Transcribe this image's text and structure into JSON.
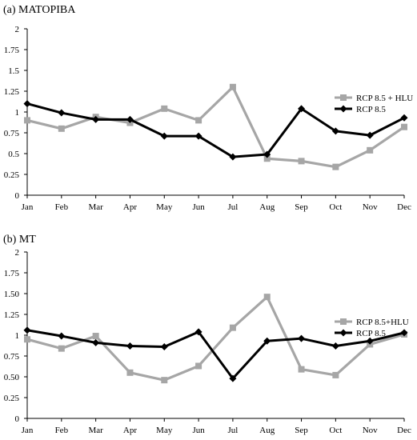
{
  "chart_data": [
    {
      "type": "line",
      "title": "(a) MATOPIBA",
      "categories": [
        "Jan",
        "Feb",
        "Mar",
        "Apr",
        "May",
        "Jun",
        "Jul",
        "Aug",
        "Sep",
        "Oct",
        "Nov",
        "Dec"
      ],
      "y_ticks": [
        "0",
        "0.25",
        "0.5",
        "0.75",
        "1",
        "1.25",
        "1.5",
        "1.75",
        "2"
      ],
      "ylim": [
        0,
        2
      ],
      "grid": false,
      "legend_position": "right",
      "series": [
        {
          "name": "RCP 8.5 + HLU",
          "color": "#a6a6a6",
          "marker": "square",
          "values": [
            0.9,
            0.8,
            0.94,
            0.87,
            1.04,
            0.9,
            1.3,
            0.44,
            0.41,
            0.34,
            0.54,
            0.82
          ]
        },
        {
          "name": "RCP 8.5",
          "color": "#000000",
          "marker": "diamond",
          "values": [
            1.1,
            0.99,
            0.91,
            0.91,
            0.71,
            0.71,
            0.46,
            0.49,
            1.04,
            0.77,
            0.72,
            0.93
          ]
        }
      ]
    },
    {
      "type": "line",
      "title": "(b) MT",
      "categories": [
        "Jan",
        "Feb",
        "Mar",
        "Apr",
        "May",
        "Jun",
        "Jul",
        "Aug",
        "Sep",
        "Oct",
        "Nov",
        "Dec"
      ],
      "y_ticks": [
        "0",
        "0.25",
        "0.50",
        "0.75",
        "1",
        "1.25",
        "1.50",
        "1.75",
        "2"
      ],
      "ylim": [
        0,
        2
      ],
      "grid": false,
      "legend_position": "right",
      "series": [
        {
          "name": "RCP 8.5+HLU",
          "color": "#a6a6a6",
          "marker": "square",
          "values": [
            0.95,
            0.84,
            0.99,
            0.55,
            0.46,
            0.63,
            1.09,
            1.46,
            0.59,
            0.52,
            0.89,
            1.01
          ]
        },
        {
          "name": "RCP 8.5",
          "color": "#000000",
          "marker": "diamond",
          "values": [
            1.06,
            0.99,
            0.91,
            0.87,
            0.86,
            1.04,
            0.48,
            0.93,
            0.96,
            0.87,
            0.93,
            1.03
          ]
        }
      ]
    }
  ]
}
